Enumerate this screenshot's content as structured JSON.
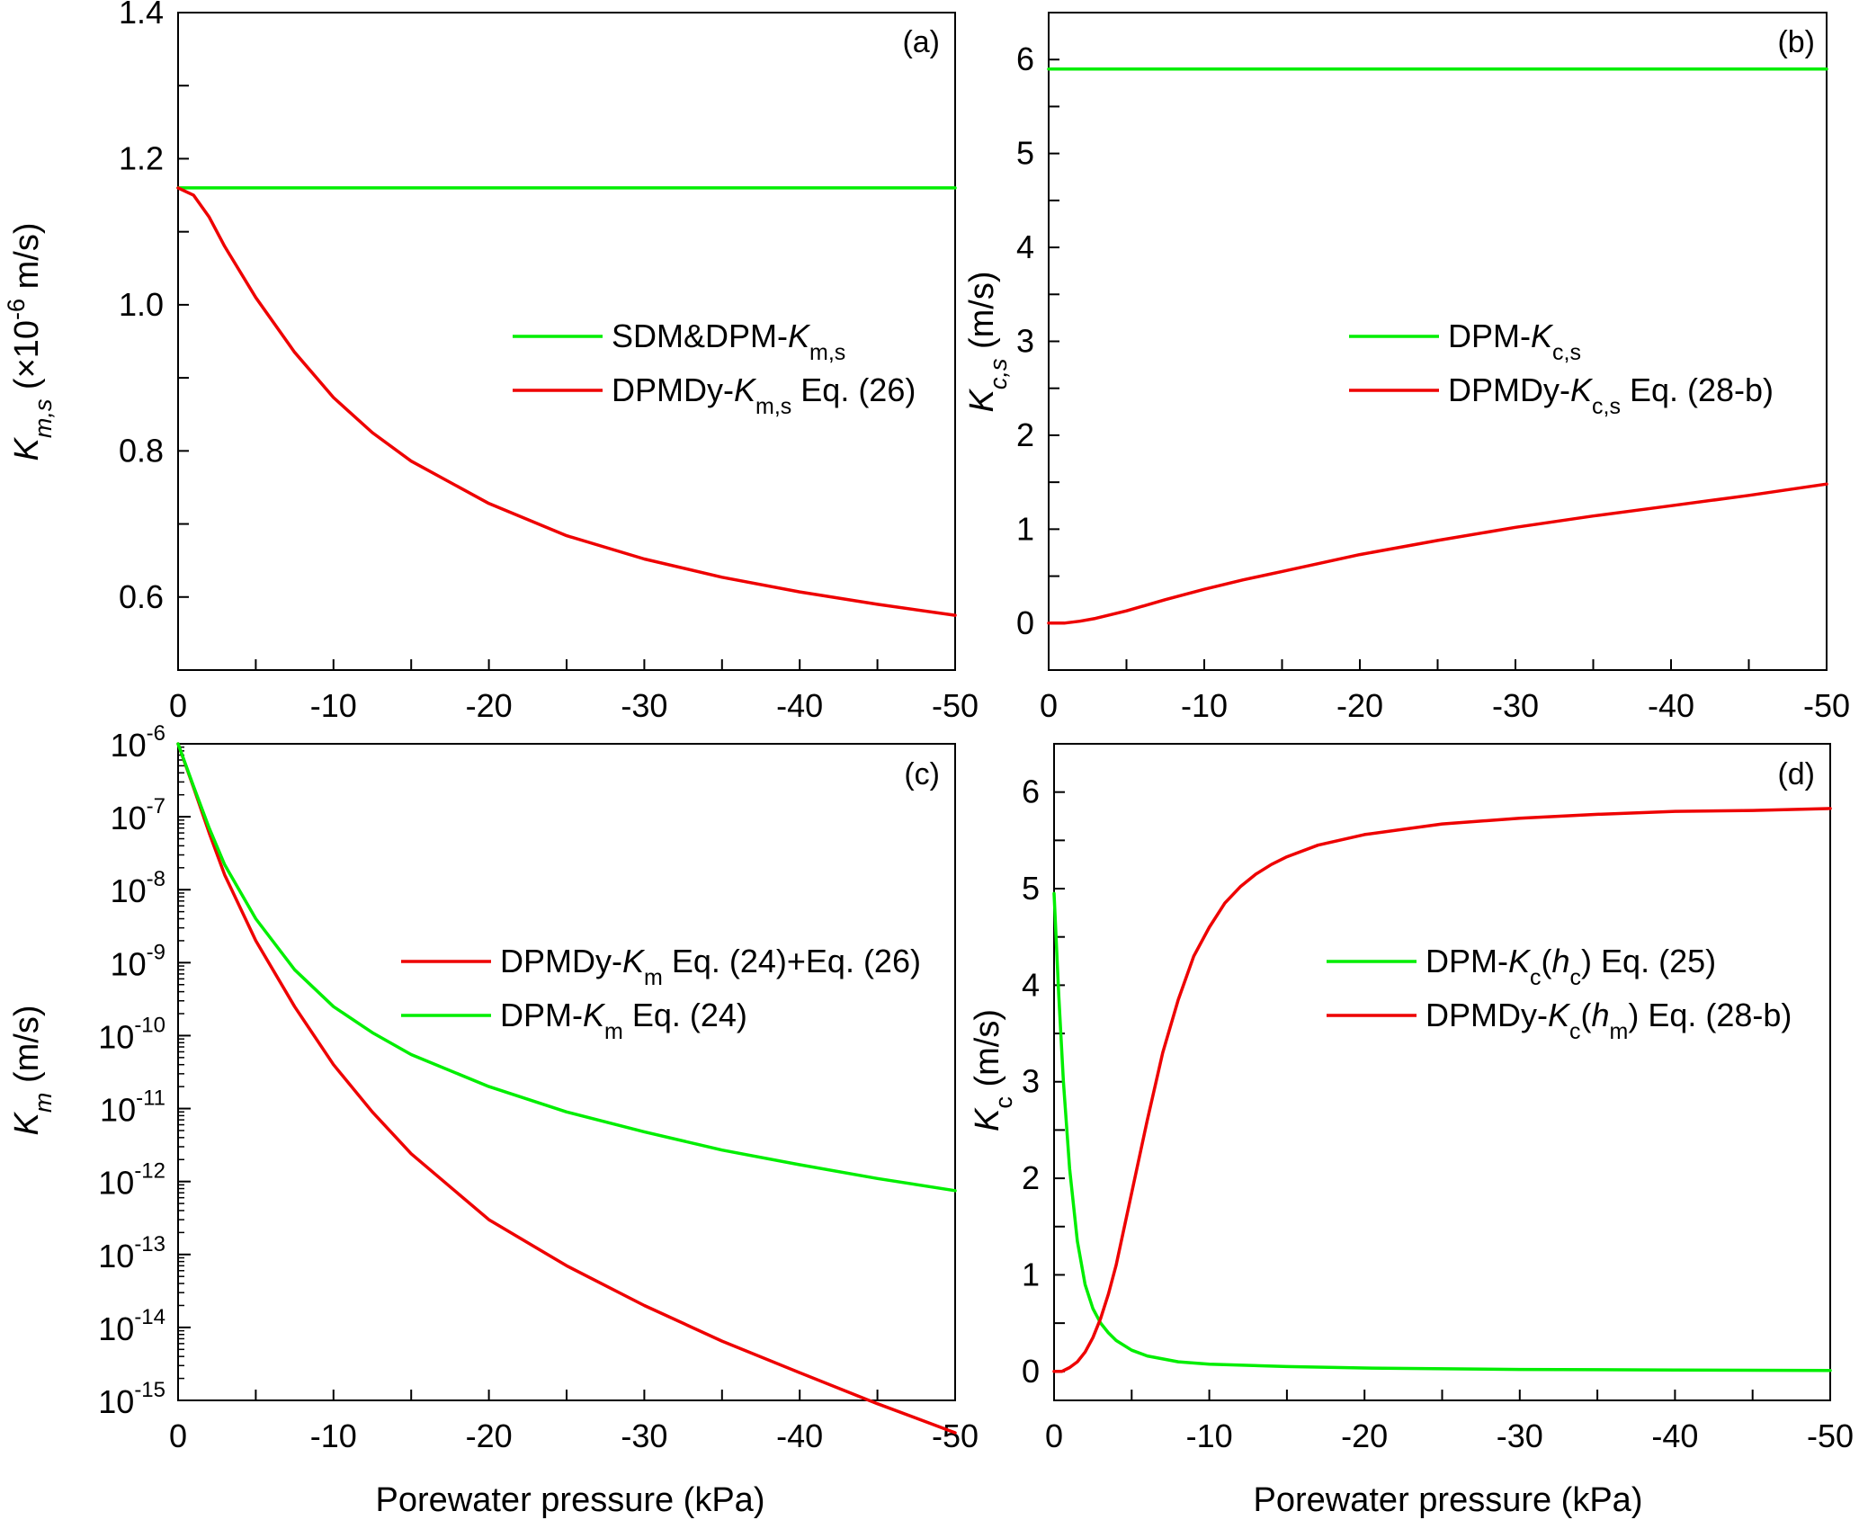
{
  "xlabel": "Porewater pressure (kPa)",
  "chart_data": [
    {
      "id": "a",
      "type": "line",
      "panel_label": "(a)",
      "xlabel": "",
      "ylabel": "K_m,s (×10^-6 m/s)",
      "ylabel_parts": [
        {
          "text": "K",
          "style": "italic"
        },
        {
          "text": "m,s",
          "style": "italic-sub"
        },
        {
          "text": " (×10",
          "style": "normal"
        },
        {
          "text": "-6",
          "style": "sup"
        },
        {
          "text": " m/s)",
          "style": "normal"
        }
      ],
      "xlim": [
        0,
        -50
      ],
      "ylim": [
        0.5,
        1.4
      ],
      "yscale": "linear",
      "xticks": [
        0,
        -10,
        -20,
        -30,
        -40,
        -50
      ],
      "xtick_labels": [
        "0",
        "-10",
        "-20",
        "-30",
        "-40",
        "-50"
      ],
      "yticks": [
        0.6,
        0.8,
        1.0,
        1.2,
        1.4
      ],
      "ytick_labels": [
        "0.6",
        "0.8",
        "1.0",
        "1.2",
        "1.4"
      ],
      "legend_position": "center-right",
      "series": [
        {
          "name": "SDM&DPM-K_m,s",
          "color": "#00ee00",
          "legend_parts": [
            {
              "text": "SDM&DPM-",
              "style": "normal"
            },
            {
              "text": "K",
              "style": "italic"
            },
            {
              "text": "m,s",
              "style": "sub"
            }
          ],
          "x": [
            0,
            -50
          ],
          "y": [
            1.16,
            1.16
          ]
        },
        {
          "name": "DPMDy-K_m,s Eq. (26)",
          "color": "#ee0000",
          "legend_parts": [
            {
              "text": "DPMDy-",
              "style": "normal"
            },
            {
              "text": "K",
              "style": "italic"
            },
            {
              "text": "m,s",
              "style": "sub"
            },
            {
              "text": " Eq. (26)",
              "style": "normal"
            }
          ],
          "x": [
            0,
            -1,
            -2,
            -3,
            -5,
            -7.5,
            -10,
            -12.5,
            -15,
            -20,
            -25,
            -30,
            -35,
            -40,
            -45,
            -50
          ],
          "y": [
            1.16,
            1.15,
            1.12,
            1.08,
            1.01,
            0.935,
            0.873,
            0.825,
            0.786,
            0.728,
            0.684,
            0.652,
            0.627,
            0.607,
            0.59,
            0.575
          ]
        }
      ]
    },
    {
      "id": "b",
      "type": "line",
      "panel_label": "(b)",
      "xlabel": "",
      "ylabel": "K_c,s (m/s)",
      "ylabel_parts": [
        {
          "text": "K",
          "style": "italic"
        },
        {
          "text": "c,s",
          "style": "italic-sub"
        },
        {
          "text": " (m/s)",
          "style": "normal"
        }
      ],
      "xlim": [
        0,
        -50
      ],
      "ylim": [
        -0.5,
        6.5
      ],
      "yscale": "linear",
      "xticks": [
        0,
        -10,
        -20,
        -30,
        -40,
        -50
      ],
      "xtick_labels": [
        "0",
        "-10",
        "-20",
        "-30",
        "-40",
        "-50"
      ],
      "yticks": [
        0,
        1,
        2,
        3,
        4,
        5,
        6
      ],
      "ytick_labels": [
        "0",
        "1",
        "2",
        "3",
        "4",
        "5",
        "6"
      ],
      "legend_position": "center-right",
      "series": [
        {
          "name": "DPM-K_c,s",
          "color": "#00ee00",
          "legend_parts": [
            {
              "text": "DPM-",
              "style": "normal"
            },
            {
              "text": "K",
              "style": "italic"
            },
            {
              "text": "c,s",
              "style": "sub"
            }
          ],
          "x": [
            0,
            -50
          ],
          "y": [
            5.9,
            5.9
          ]
        },
        {
          "name": "DPMDy-K_c,s Eq. (28-b)",
          "color": "#ee0000",
          "legend_parts": [
            {
              "text": "DPMDy-",
              "style": "normal"
            },
            {
              "text": "K",
              "style": "italic"
            },
            {
              "text": "c,s",
              "style": "sub"
            },
            {
              "text": " Eq. (28-b)",
              "style": "normal"
            }
          ],
          "x": [
            0,
            -1,
            -2,
            -3,
            -5,
            -7.5,
            -10,
            -12.5,
            -15,
            -20,
            -25,
            -30,
            -35,
            -40,
            -45,
            -50
          ],
          "y": [
            0,
            0.0,
            0.02,
            0.05,
            0.13,
            0.25,
            0.36,
            0.46,
            0.55,
            0.73,
            0.88,
            1.02,
            1.14,
            1.25,
            1.36,
            1.48
          ]
        }
      ]
    },
    {
      "id": "c",
      "type": "line",
      "panel_label": "(c)",
      "xlabel": "Porewater pressure (kPa)",
      "ylabel": "K_m (m/s)",
      "ylabel_parts": [
        {
          "text": "K",
          "style": "italic"
        },
        {
          "text": "m",
          "style": "italic-sub"
        },
        {
          "text": " (m/s)",
          "style": "normal"
        }
      ],
      "xlim": [
        0,
        -50
      ],
      "ylim": [
        -15,
        -6
      ],
      "yscale": "log",
      "xticks": [
        0,
        -10,
        -20,
        -30,
        -40,
        -50
      ],
      "xtick_labels": [
        "0",
        "-10",
        "-20",
        "-30",
        "-40",
        "-50"
      ],
      "yticks": [
        -15,
        -14,
        -13,
        -12,
        -11,
        -10,
        -9,
        -8,
        -7,
        -6
      ],
      "ytick_labels": [
        "-15",
        "-14",
        "-13",
        "-12",
        "-11",
        "-10",
        "-9",
        "-8",
        "-7",
        "-6"
      ],
      "ytick_base": "10",
      "legend_position": "center-right",
      "series": [
        {
          "name": "DPMDy-K_m Eq. (24)+Eq. (26)",
          "color": "#ee0000",
          "legend_parts": [
            {
              "text": "DPMDy-",
              "style": "normal"
            },
            {
              "text": "K",
              "style": "italic"
            },
            {
              "text": "m",
              "style": "sub"
            },
            {
              "text": " Eq. (24)+Eq. (26)",
              "style": "normal"
            }
          ],
          "x": [
            0,
            -1,
            -2,
            -3,
            -5,
            -7.5,
            -10,
            -12.5,
            -15,
            -20,
            -25,
            -30,
            -35,
            -40,
            -45,
            -50
          ],
          "y": [
            1e-06,
            2.5e-07,
            6e-08,
            1.6e-08,
            2e-09,
            2.5e-10,
            4e-11,
            9e-12,
            2.4e-12,
            3e-13,
            7e-14,
            2e-14,
            6.5e-15,
            2.4e-15,
            9e-16,
            3.6e-16
          ]
        },
        {
          "name": "DPM-K_m Eq. (24)",
          "color": "#00ee00",
          "legend_parts": [
            {
              "text": "DPM-",
              "style": "normal"
            },
            {
              "text": "K",
              "style": "italic"
            },
            {
              "text": "m",
              "style": "sub"
            },
            {
              "text": " Eq. (24)",
              "style": "normal"
            }
          ],
          "x": [
            0,
            -1,
            -2,
            -3,
            -5,
            -7.5,
            -10,
            -12.5,
            -15,
            -20,
            -25,
            -30,
            -35,
            -40,
            -45,
            -50
          ],
          "y": [
            1e-06,
            2.6e-07,
            7e-08,
            2.2e-08,
            4e-09,
            8e-10,
            2.5e-10,
            1.1e-10,
            5.5e-11,
            2e-11,
            9e-12,
            4.8e-12,
            2.7e-12,
            1.7e-12,
            1.1e-12,
            7.5e-13
          ]
        }
      ]
    },
    {
      "id": "d",
      "type": "line",
      "panel_label": "(d)",
      "xlabel": "Porewater pressure (kPa)",
      "ylabel": "K_c (m/s)",
      "ylabel_parts": [
        {
          "text": "K",
          "style": "italic"
        },
        {
          "text": "c",
          "style": "sub"
        },
        {
          "text": " (m/s)",
          "style": "normal"
        }
      ],
      "xlim": [
        0,
        -50
      ],
      "ylim": [
        -0.3,
        6.5
      ],
      "yscale": "linear",
      "xticks": [
        0,
        -10,
        -20,
        -30,
        -40,
        -50
      ],
      "xtick_labels": [
        "0",
        "-10",
        "-20",
        "-30",
        "-40",
        "-50"
      ],
      "yticks": [
        0,
        1,
        2,
        3,
        4,
        5,
        6
      ],
      "ytick_labels": [
        "0",
        "1",
        "2",
        "3",
        "4",
        "5",
        "6"
      ],
      "legend_position": "center-right",
      "series": [
        {
          "name": "DPM-K_c(h_c) Eq. (25)",
          "color": "#00ee00",
          "legend_parts": [
            {
              "text": "DPM-",
              "style": "normal"
            },
            {
              "text": "K",
              "style": "italic"
            },
            {
              "text": "c",
              "style": "sub"
            },
            {
              "text": "(",
              "style": "normal"
            },
            {
              "text": "h",
              "style": "italic"
            },
            {
              "text": "c",
              "style": "sub"
            },
            {
              "text": ") Eq. (25)",
              "style": "normal"
            }
          ],
          "x": [
            0,
            -0.3,
            -0.6,
            -1,
            -1.5,
            -2,
            -2.5,
            -3,
            -3.5,
            -4,
            -5,
            -6,
            -8,
            -10,
            -15,
            -20,
            -30,
            -40,
            -50
          ],
          "y": [
            4.95,
            3.9,
            3.0,
            2.1,
            1.35,
            0.9,
            0.65,
            0.5,
            0.4,
            0.32,
            0.22,
            0.16,
            0.1,
            0.075,
            0.05,
            0.035,
            0.02,
            0.015,
            0.01
          ]
        },
        {
          "name": "DPMDy-K_c(h_m) Eq. (28-b)",
          "color": "#ee0000",
          "legend_parts": [
            {
              "text": "DPMDy-",
              "style": "normal"
            },
            {
              "text": "K",
              "style": "italic"
            },
            {
              "text": "c",
              "style": "sub"
            },
            {
              "text": "(",
              "style": "normal"
            },
            {
              "text": "h",
              "style": "italic"
            },
            {
              "text": "m",
              "style": "sub"
            },
            {
              "text": ") Eq. (28-b)",
              "style": "normal"
            }
          ],
          "x": [
            0,
            -0.5,
            -1,
            -1.5,
            -2,
            -2.5,
            -3,
            -3.5,
            -4,
            -5,
            -6,
            -7,
            -8,
            -9,
            -10,
            -11,
            -12,
            -13,
            -14,
            -15,
            -17,
            -20,
            -25,
            -30,
            -35,
            -40,
            -45,
            -50
          ],
          "y": [
            0,
            0.0,
            0.04,
            0.1,
            0.2,
            0.35,
            0.55,
            0.8,
            1.1,
            1.85,
            2.6,
            3.3,
            3.85,
            4.3,
            4.6,
            4.85,
            5.02,
            5.15,
            5.25,
            5.33,
            5.45,
            5.56,
            5.67,
            5.73,
            5.77,
            5.8,
            5.81,
            5.83
          ]
        }
      ]
    }
  ]
}
